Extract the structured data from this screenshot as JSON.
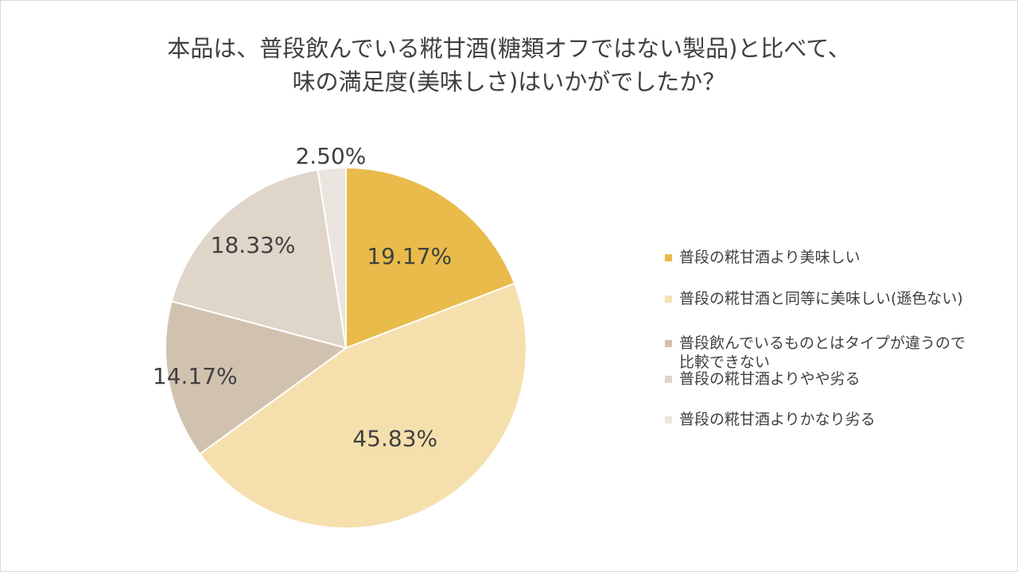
{
  "title": {
    "line1": "本品は、普段飲んでいる糀甘酒(糖類オフではない製品)と比べて、",
    "line2": "味の満足度(美味しさ)はいかがでしたか？"
  },
  "chart_data": {
    "type": "pie",
    "title": "本品は、普段飲んでいる糀甘酒(糖類オフではない製品)と比べて、味の満足度(美味しさ)はいかがでしたか？",
    "legend_position": "right",
    "start_angle": "top, clockwise",
    "slices": [
      {
        "label": "普段の糀甘酒より美味しい",
        "value": 19.17,
        "display": "19.17%",
        "color": "#e8bb4a"
      },
      {
        "label": "普段の糀甘酒と同等に美味しい(遜色ない)",
        "value": 45.83,
        "display": "45.83%",
        "color": "#f5e0ad"
      },
      {
        "label": "普段飲んでいるものとはタイプが違うので比較できない",
        "value": 14.17,
        "display": "14.17%",
        "color": "#d1c2b0"
      },
      {
        "label": "普段の糀甘酒よりやや劣る",
        "value": 18.33,
        "display": "18.33%",
        "color": "#e0d5c9"
      },
      {
        "label": "普段の糀甘酒よりかなり劣る",
        "value": 2.5,
        "display": "2.50%",
        "color": "#ebe5df"
      }
    ]
  }
}
